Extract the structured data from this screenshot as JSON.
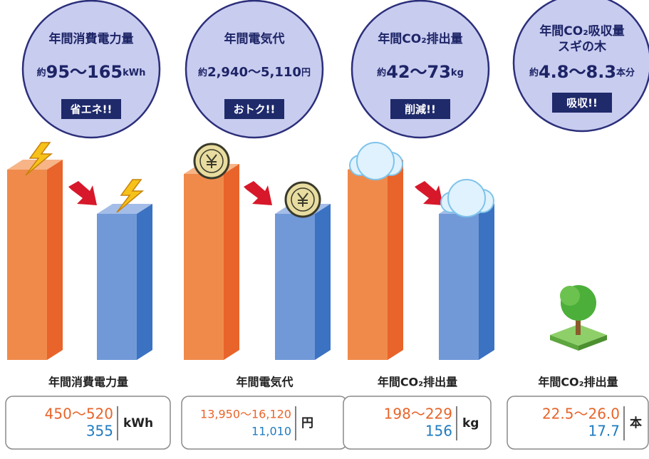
{
  "panels": [
    {
      "circle": {
        "title": "年間消費電力量",
        "prefix": "約",
        "value": "95〜165",
        "unit": "kWh",
        "badge": "省エネ!!"
      },
      "label": "年間消費電力量",
      "box": {
        "range": "450〜520",
        "value": "355",
        "unit": "kWh"
      }
    },
    {
      "circle": {
        "title": "年間電気代",
        "prefix": "約",
        "value": "2,940〜5,110",
        "unit": "円",
        "badge": "おトク!!"
      },
      "label": "年間電気代",
      "box": {
        "range": "13,950〜16,120",
        "value": "11,010",
        "unit": "円"
      }
    },
    {
      "circle": {
        "title": "年間CO₂排出量",
        "prefix": "約",
        "value": "42〜73",
        "unit": "kg",
        "badge": "削減!!"
      },
      "label": "年間CO₂排出量",
      "box": {
        "range": "198〜229",
        "value": "156",
        "unit": "kg"
      }
    },
    {
      "circle": {
        "title": "年間CO₂吸収量",
        "subtitle": "スギの木",
        "prefix": "約",
        "value": "4.8〜8.3",
        "unit": "本分",
        "badge": "吸収!!"
      },
      "label": "年間CO₂排出量",
      "box": {
        "range": "22.5〜26.0",
        "value": "17.7",
        "unit": "本"
      }
    }
  ]
}
